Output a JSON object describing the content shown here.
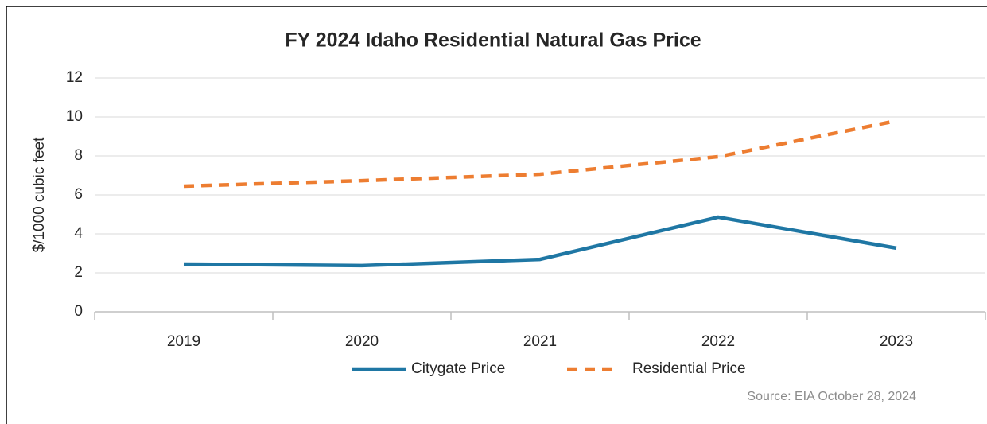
{
  "chart_data": {
    "type": "line",
    "title": "FY 2024 Idaho Residential Natural Gas Price",
    "y_label": "$/1000 cubic feet",
    "annotation": "Source: EIA October 28, 2024",
    "categories": [
      "2019",
      "2020",
      "2021",
      "2022",
      "2023"
    ],
    "series": [
      {
        "name": "Citygate Price",
        "color": "#1f77a4",
        "dashed": false,
        "values": [
          2.45,
          2.37,
          2.69,
          4.86,
          3.27
        ]
      },
      {
        "name": "Residential Price",
        "color": "#ed7d31",
        "dashed": true,
        "values": [
          6.45,
          6.73,
          7.06,
          7.96,
          9.8
        ]
      }
    ],
    "ylim": [
      0,
      12
    ],
    "yticks": [
      0,
      2,
      4,
      6,
      8,
      10,
      12
    ],
    "grid": true
  }
}
